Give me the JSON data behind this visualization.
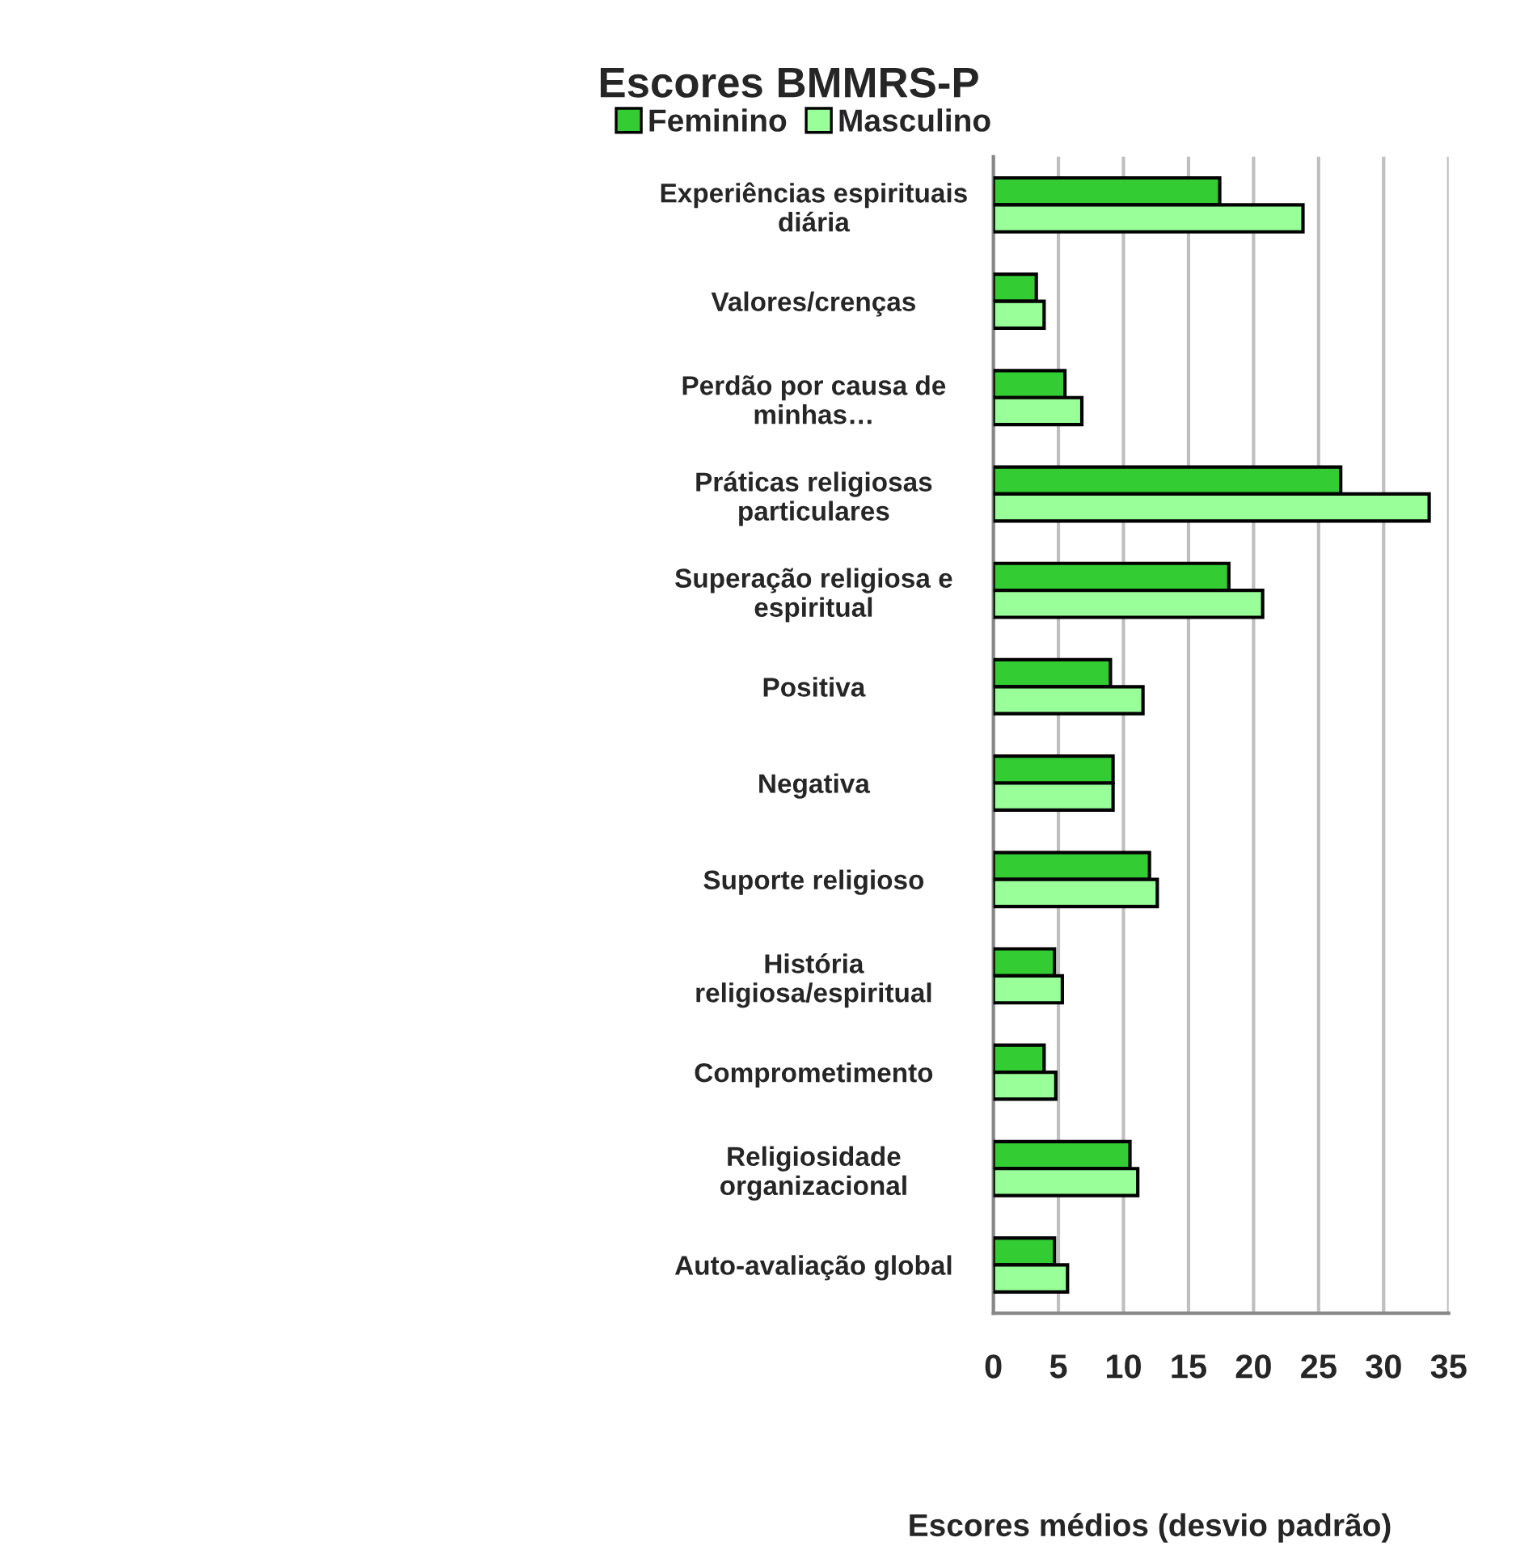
{
  "chart_data": {
    "type": "bar",
    "orientation": "horizontal",
    "title": "Escores BMMRS-P",
    "xlabel": "Escores médios (desvio padrão)",
    "categories": [
      "Experiências espirituais\ndiária",
      "Valores/crenças",
      "Perdão por causa de\nminhas…",
      "Práticas religiosas\nparticulares",
      "Superação religiosa e\nespiritual",
      "Positiva",
      "Negativa",
      "Suporte religioso",
      "História\nreligiosa/espiritual",
      "Comprometimento",
      "Religiosidade\norganizacional",
      "Auto-avaliação global"
    ],
    "series": [
      {
        "name": "Feminino",
        "color": "#33cc33",
        "values": [
          17.4,
          3.3,
          5.5,
          26.7,
          18.1,
          9.0,
          9.2,
          12.0,
          4.7,
          3.9,
          10.5,
          4.7
        ]
      },
      {
        "name": "Masculino",
        "color": "#99ff99",
        "values": [
          23.8,
          3.9,
          6.8,
          33.5,
          20.7,
          11.5,
          9.2,
          12.6,
          5.3,
          4.8,
          11.1,
          5.7
        ]
      }
    ],
    "xlim": [
      0,
      35
    ],
    "xticks": [
      0,
      5,
      10,
      15,
      20,
      25,
      30,
      35
    ],
    "grid": "x",
    "legend": "top"
  }
}
